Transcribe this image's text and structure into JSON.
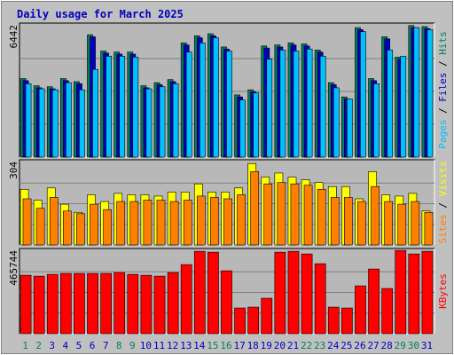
{
  "title": "Daily usage for March 2025",
  "colors": {
    "background": "#C0C0C0",
    "panel": "#B8B8B8",
    "title": "#0000C0",
    "hits": "#00805C",
    "files": "#0000C0",
    "pages": "#00C0FF",
    "visits": "#FFFF00",
    "sites": "#FF8000",
    "kbytes": "#FF0000",
    "weekday_label": "#0000C0",
    "weekend_label": "#00805C"
  },
  "chart_data": {
    "type": "bar",
    "days": [
      1,
      2,
      3,
      4,
      5,
      6,
      7,
      8,
      9,
      10,
      11,
      12,
      13,
      14,
      15,
      16,
      17,
      18,
      19,
      20,
      21,
      22,
      23,
      24,
      25,
      26,
      27,
      28,
      29,
      30,
      31
    ],
    "weekend_days": [
      1,
      2,
      8,
      9,
      15,
      16,
      22,
      23,
      29,
      30
    ],
    "x_tick_labels": [
      "1",
      "2",
      "3",
      "4",
      "5",
      "6",
      "7",
      "8",
      "9",
      "10",
      "11",
      "12",
      "13",
      "14",
      "15",
      "16",
      "17",
      "18",
      "19",
      "20",
      "21",
      "22",
      "23",
      "24",
      "25",
      "26",
      "27",
      "28",
      "29",
      "30",
      "31"
    ],
    "panels": [
      {
        "name": "hits-files-pages",
        "ymax_label": "6442",
        "ymax": 6442,
        "axis_label_parts": [
          "Pages",
          "Files",
          "Hits"
        ],
        "series": [
          {
            "name": "Hits",
            "values": [
              3850,
              3500,
              3450,
              3850,
              3700,
              6000,
              5200,
              5150,
              5150,
              3500,
              3650,
              3800,
              5600,
              5950,
              6050,
              5400,
              3050,
              3300,
              5450,
              5500,
              5600,
              5550,
              5250,
              3650,
              2950,
              6350,
              3850,
              5900,
              4900,
              6450,
              6400
            ]
          },
          {
            "name": "Files",
            "values": [
              3750,
              3400,
              3350,
              3750,
              3600,
              5900,
              5100,
              5050,
              5050,
              3400,
              3550,
              3700,
              5500,
              5850,
              5950,
              5300,
              2950,
              3200,
              5350,
              5400,
              5500,
              5450,
              5150,
              3550,
              2850,
              6250,
              3750,
              5800,
              4800,
              6350,
              6300
            ]
          },
          {
            "name": "Pages",
            "values": [
              3600,
              3350,
              3300,
              3650,
              3300,
              4300,
              4950,
              4950,
              4900,
              3350,
              3450,
              3600,
              5150,
              5600,
              5850,
              5200,
              2800,
              3150,
              4800,
              5250,
              5200,
              5300,
              4950,
              3400,
              2850,
              6150,
              3600,
              5250,
              4950,
              6350,
              6250
            ]
          }
        ]
      },
      {
        "name": "visits-sites",
        "ymax_label": "304",
        "ymax": 304,
        "axis_label_parts": [
          "Sites",
          "Visits"
        ],
        "series": [
          {
            "name": "Visits",
            "values": [
              205,
              165,
              210,
              150,
              120,
              185,
              160,
              190,
              185,
              185,
              180,
              195,
              195,
              225,
              195,
              195,
              210,
              300,
              250,
              265,
              250,
              240,
              230,
              215,
              215,
              170,
              270,
              185,
              180,
              190,
              125
            ]
          },
          {
            "name": "Sites",
            "values": [
              170,
              135,
              175,
              125,
              115,
              150,
              130,
              160,
              160,
              165,
              165,
              160,
              165,
              180,
              175,
              170,
              185,
              270,
              225,
              230,
              225,
              220,
              205,
              175,
              175,
              160,
              215,
              160,
              150,
              160,
              120
            ]
          }
        ]
      },
      {
        "name": "kbytes",
        "ymax_label": "465744",
        "ymax": 465744,
        "axis_label_parts": [
          "KBytes"
        ],
        "series": [
          {
            "name": "KBytes",
            "values": [
              330000,
              325000,
              335000,
              340000,
              340000,
              340000,
              340000,
              345000,
              335000,
              330000,
              325000,
              345000,
              390000,
              465000,
              460000,
              355000,
              145000,
              150000,
              200000,
              460000,
              465000,
              450000,
              395000,
              150000,
              145000,
              270000,
              365000,
              255000,
              470000,
              450000,
              465000
            ]
          }
        ]
      }
    ]
  }
}
